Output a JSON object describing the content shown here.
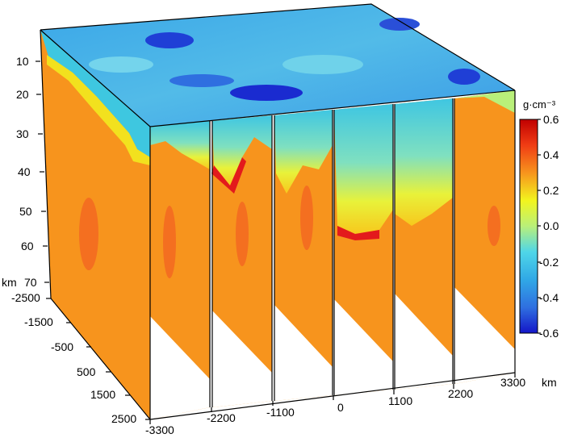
{
  "depth_axis": {
    "unit": "km",
    "ticks": [
      "10",
      "20",
      "30",
      "40",
      "50",
      "60",
      "70"
    ]
  },
  "y_axis": {
    "ticks": [
      "-2500",
      "-1500",
      "-500",
      "500",
      "1500",
      "2500"
    ]
  },
  "x_axis": {
    "unit": "km",
    "ticks": [
      "-3300",
      "-2200",
      "-1100",
      "0",
      "1100",
      "2200",
      "3300"
    ]
  },
  "colorbar": {
    "title": "g·cm⁻³",
    "ticks": [
      "0.6",
      "0.4",
      "0.2",
      "0.0",
      "-0.2",
      "-0.4",
      "-0.6"
    ],
    "min": -0.6,
    "max": 0.6
  },
  "colors": {
    "mantle_orange": "#f7941d",
    "deep_orange": "#f26522",
    "red": "#e31a1c",
    "yellow": "#f2f51e",
    "cyan": "#34c3e6",
    "blue": "#2f7fd8",
    "dark_blue": "#1a2bd9"
  }
}
